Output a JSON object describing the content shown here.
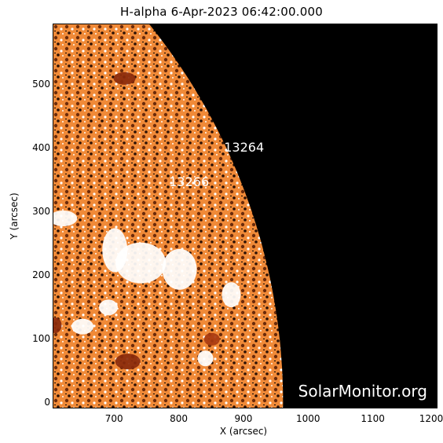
{
  "title": "H-alpha   6-Apr-2023 06:42:00.000",
  "axes": {
    "x": {
      "label": "X (arcsec)",
      "ticks": [
        "700",
        "800",
        "900",
        "1000",
        "1100",
        "1200"
      ],
      "range": [
        605,
        1200
      ]
    },
    "y": {
      "label": "Y (arcsec)",
      "ticks": [
        "0",
        "100",
        "200",
        "300",
        "400",
        "500"
      ],
      "range": [
        -10,
        595
      ]
    }
  },
  "active_regions": [
    {
      "label": "13264",
      "x": 870,
      "y": 400
    },
    {
      "label": "13266",
      "x": 785,
      "y": 345
    }
  ],
  "watermark": "SolarMonitor.org",
  "colors": {
    "disk": "#f08a38",
    "disk_dark": "#a83a10",
    "background": "#000000",
    "label": "#ffffff"
  }
}
